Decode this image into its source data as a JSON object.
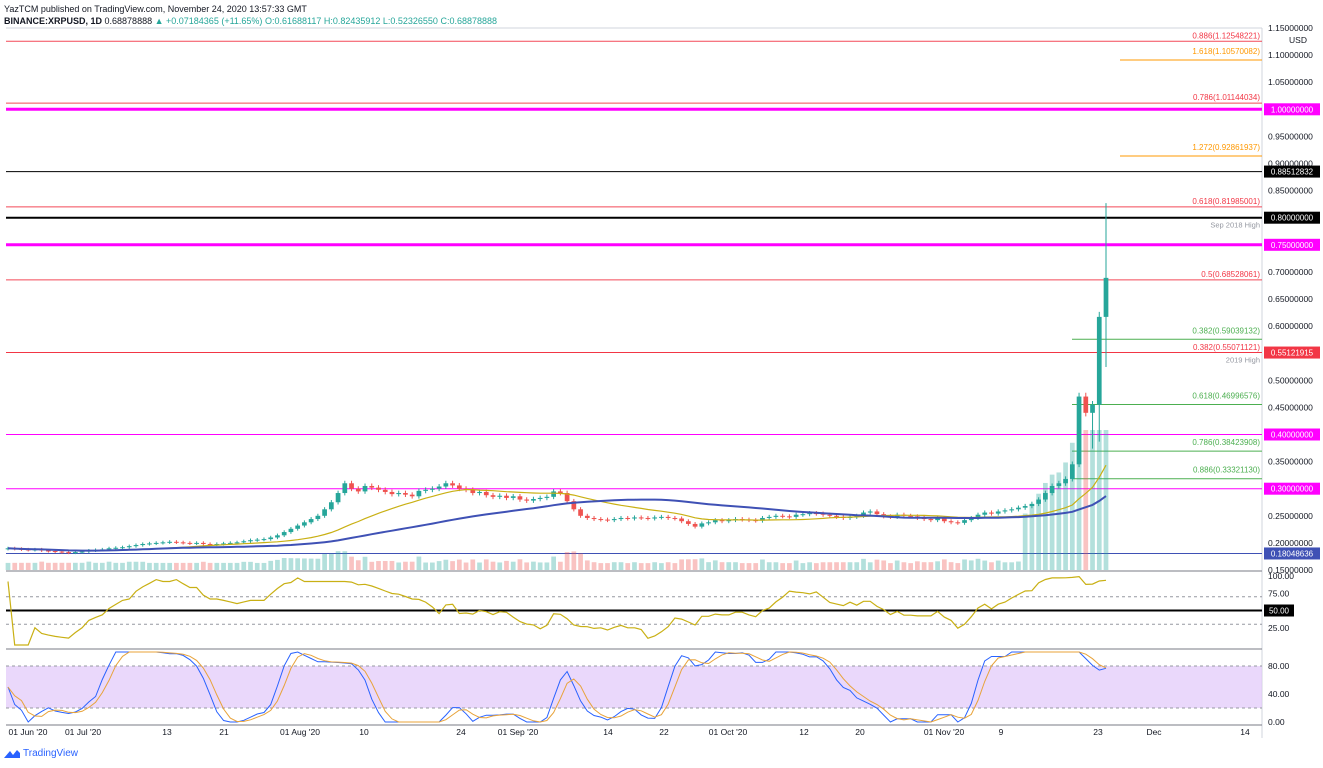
{
  "header": {
    "published": "YazTCM published on TradingView.com, November 24, 2020 13:57:33 GMT",
    "symbol": "BINANCE:XRPUSD, 1D",
    "last": "0.68878888",
    "change": "▲ +0.07184365 (+11.65%)",
    "ohlc": "O:0.61688117 H:0.82435912 L:0.52326550 C:0.68878888"
  },
  "footer": {
    "brand": "TradingView"
  },
  "colors": {
    "up": "#26a69a",
    "down": "#ef5350",
    "magenta": "#ff00ff",
    "fib_red": "#f23645",
    "fib_orange": "#ff9800",
    "fib_green": "#4caf50",
    "rsi": "#c9b014",
    "stoch_k": "#2962ff",
    "stoch_d": "#e8a33a",
    "ma_fast": "#c9b014",
    "ma_slow": "#3f51b5"
  },
  "chart_data": [
    {
      "type": "candlestick",
      "title": "",
      "price_axis": {
        "unit": "USD",
        "ylim": [
          0.15,
          1.15
        ],
        "ticks": [
          "1.15000000",
          "1.10000000",
          "1.05000000",
          "1.00000000",
          "0.95000000",
          "0.90000000",
          "0.85000000",
          "0.80000000",
          "0.75000000",
          "0.70000000",
          "0.65000000",
          "0.60000000",
          "0.55000000",
          "0.50000000",
          "0.45000000",
          "0.40000000",
          "0.35000000",
          "0.30000000",
          "0.25000000",
          "0.20000000",
          "0.15000000"
        ]
      },
      "time_axis": {
        "labels": [
          "01 Jun '20",
          "01 Jul '20",
          "13",
          "21",
          "01 Aug '20",
          "10",
          "24",
          "01 Sep '20",
          "14",
          "22",
          "01 Oct '20",
          "12",
          "20",
          "01 Nov '20",
          "9",
          "23",
          "Dec",
          "14"
        ]
      },
      "horizontal_levels": [
        {
          "price": 1.0,
          "color": "magenta",
          "width": 3,
          "badge": "1.00000000"
        },
        {
          "price": 0.8851,
          "color": "black",
          "width": 1,
          "badge": "0.88512832"
        },
        {
          "price": 0.8,
          "color": "black",
          "width": 2,
          "badge": "0.80000000",
          "note": "Sep 2018 High"
        },
        {
          "price": 0.75,
          "color": "magenta",
          "width": 3,
          "badge": "0.75000000"
        },
        {
          "price": 0.6853,
          "color": "fib_red",
          "width": 1
        },
        {
          "price": 0.5512,
          "color": "fib_red",
          "width": 1,
          "badge": "0.55121915",
          "note": "2019 High"
        },
        {
          "price": 0.4,
          "color": "magenta",
          "width": 1,
          "badge": "0.40000000"
        },
        {
          "price": 0.3,
          "color": "magenta",
          "width": 1,
          "badge": "0.30000000"
        },
        {
          "price": 0.1805,
          "color": "ma_slow",
          "width": 1,
          "badge": "0.18048636"
        },
        {
          "price": 1.1255,
          "color": "fib_red",
          "width": 1
        },
        {
          "price": 1.0114,
          "color": "fib_red",
          "width": 1
        },
        {
          "price": 0.8199,
          "color": "fib_red",
          "width": 1
        }
      ],
      "fib_labels": [
        {
          "text": "0.886(1.12548221)",
          "price": 1.1255,
          "color": "fib_red"
        },
        {
          "text": "1.618(1.10570082)",
          "price": 1.1057,
          "color": "fib_orange"
        },
        {
          "text": "0.786(1.01144034)",
          "price": 1.0114,
          "color": "fib_red"
        },
        {
          "text": "1.272(0.92861937)",
          "price": 0.9286,
          "color": "fib_orange"
        },
        {
          "text": "0.618(0.81985001)",
          "price": 0.8199,
          "color": "fib_red"
        },
        {
          "text": "0.5(0.68528061)",
          "price": 0.6853,
          "color": "fib_red"
        },
        {
          "text": "0.382(0.59039132)",
          "price": 0.5904,
          "color": "fib_green"
        },
        {
          "text": "0.382(0.55071121)",
          "price": 0.5507,
          "color": "fib_red"
        },
        {
          "text": "0.618(0.46996576)",
          "price": 0.47,
          "color": "fib_green"
        },
        {
          "text": "0.786(0.38423908)",
          "price": 0.3842,
          "color": "fib_green"
        },
        {
          "text": "0.886(0.33321130)",
          "price": 0.3332,
          "color": "fib_green"
        }
      ],
      "last_price_badge": "0.68878888",
      "close_series": [
        0.19,
        0.189,
        0.188,
        0.187,
        0.188,
        0.186,
        0.185,
        0.184,
        0.183,
        0.182,
        0.183,
        0.184,
        0.186,
        0.187,
        0.188,
        0.19,
        0.191,
        0.192,
        0.194,
        0.196,
        0.198,
        0.199,
        0.2,
        0.201,
        0.202,
        0.201,
        0.2,
        0.199,
        0.2,
        0.198,
        0.197,
        0.198,
        0.199,
        0.2,
        0.201,
        0.203,
        0.205,
        0.206,
        0.207,
        0.21,
        0.214,
        0.22,
        0.226,
        0.232,
        0.238,
        0.244,
        0.25,
        0.262,
        0.275,
        0.292,
        0.31,
        0.3,
        0.295,
        0.305,
        0.302,
        0.298,
        0.294,
        0.29,
        0.292,
        0.289,
        0.286,
        0.296,
        0.298,
        0.3,
        0.304,
        0.31,
        0.306,
        0.3,
        0.298,
        0.292,
        0.294,
        0.288,
        0.285,
        0.287,
        0.283,
        0.286,
        0.28,
        0.278,
        0.281,
        0.283,
        0.285,
        0.295,
        0.292,
        0.277,
        0.262,
        0.25,
        0.246,
        0.244,
        0.243,
        0.242,
        0.244,
        0.246,
        0.245,
        0.247,
        0.246,
        0.245,
        0.247,
        0.248,
        0.246,
        0.245,
        0.24,
        0.235,
        0.23,
        0.236,
        0.238,
        0.242,
        0.24,
        0.242,
        0.244,
        0.243,
        0.242,
        0.241,
        0.246,
        0.248,
        0.25,
        0.249,
        0.248,
        0.252,
        0.253,
        0.255,
        0.254,
        0.252,
        0.25,
        0.248,
        0.246,
        0.248,
        0.25,
        0.256,
        0.258,
        0.253,
        0.249,
        0.248,
        0.252,
        0.25,
        0.249,
        0.246,
        0.244,
        0.242,
        0.245,
        0.24,
        0.238,
        0.237,
        0.242,
        0.246,
        0.252,
        0.256,
        0.254,
        0.258,
        0.26,
        0.262,
        0.265,
        0.268,
        0.272,
        0.28,
        0.292,
        0.305,
        0.31,
        0.318,
        0.345,
        0.47,
        0.44,
        0.455,
        0.617,
        0.689
      ],
      "oscillators": [
        {
          "name": "RSI",
          "ticks": [
            "100.00",
            "75.00",
            "50.00",
            "25.00"
          ],
          "level": 50,
          "badge": "50.00"
        },
        {
          "name": "Stoch RSI",
          "ticks": [
            "80.00",
            "40.00",
            "0.00"
          ],
          "band": [
            20,
            80
          ]
        }
      ]
    }
  ]
}
